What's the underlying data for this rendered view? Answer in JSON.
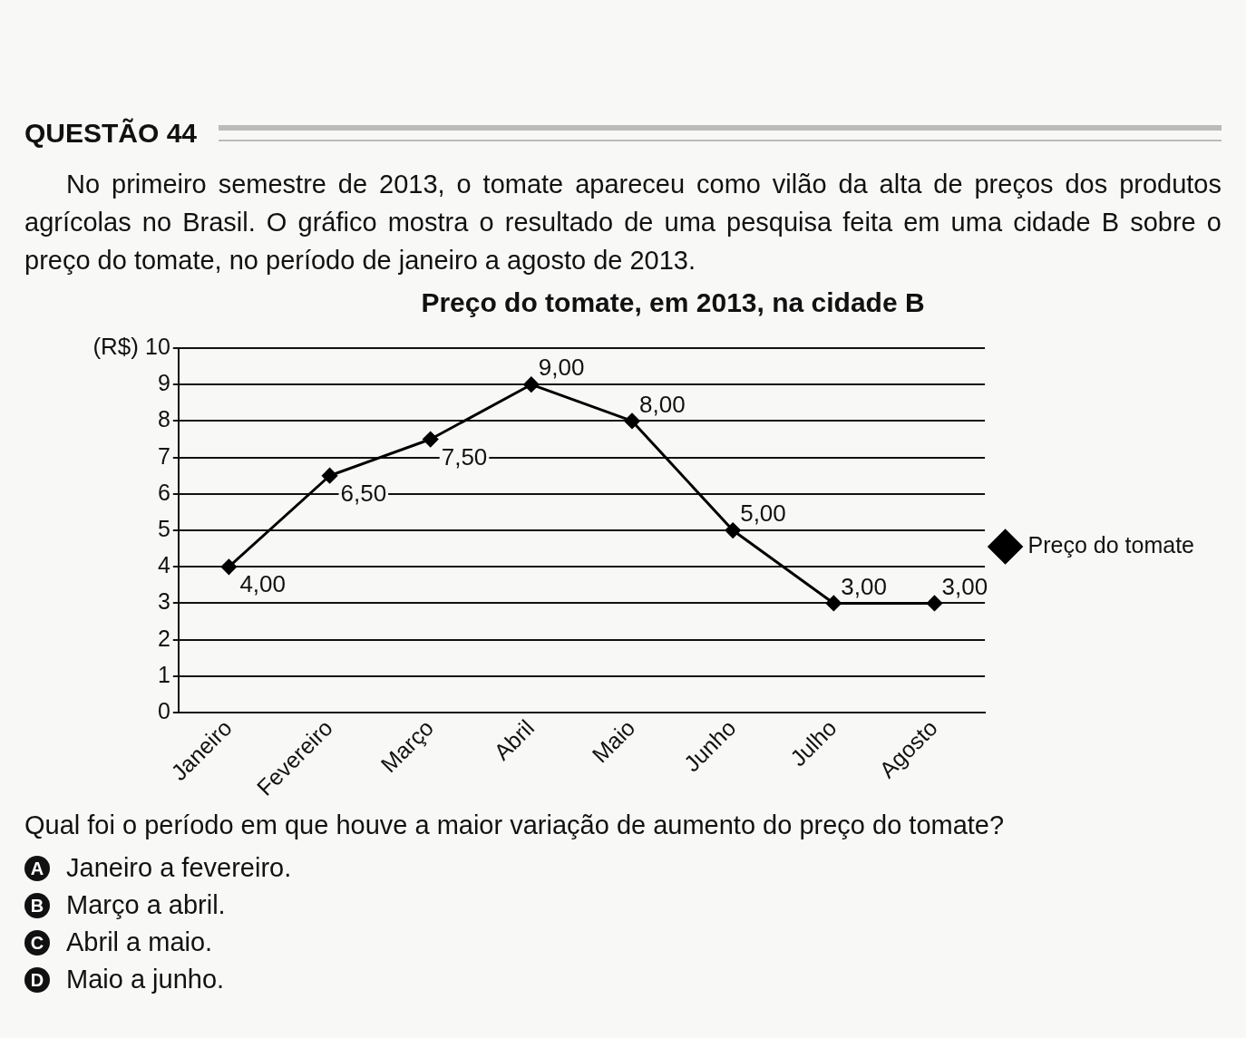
{
  "chart_data": {
    "type": "line",
    "title": "Preço do tomate, em 2013, na cidade B",
    "ylabel": "(R$)",
    "categories": [
      "Janeiro",
      "Fevereiro",
      "Março",
      "Abril",
      "Maio",
      "Junho",
      "Julho",
      "Agosto"
    ],
    "series": [
      {
        "name": "Preço do tomate",
        "color": "#000000",
        "values": [
          4,
          6.5,
          7.5,
          9,
          8,
          5,
          3,
          3
        ],
        "value_labels": [
          "4,00",
          "6,50",
          "7,50",
          "9,00",
          "8,00",
          "5,00",
          "3,00",
          "3,00"
        ]
      }
    ],
    "ylim": [
      0,
      10
    ],
    "yticks": [
      0,
      1,
      2,
      3,
      4,
      5,
      6,
      7,
      8,
      9,
      10
    ],
    "grid": "y",
    "legend": "right",
    "marker": "diamond",
    "line_style": "solid",
    "annotations": [
      "QUESTÃO 44",
      "No primeiro semestre de 2013, o tomate apareceu como vilão da alta de preços dos produtos agrícolas no Brasil. O gráfico mostra o resultado de uma pesquisa feita em uma cidade B sobre o preço do tomate, no período de janeiro a agosto de 2013.",
      "Qual foi o período em que houve a maior variação de aumento do preço do tomate?",
      "A Janeiro a fevereiro.",
      "B Março a abril.",
      "C Abril a maio.",
      "D Maio a junho."
    ]
  }
}
